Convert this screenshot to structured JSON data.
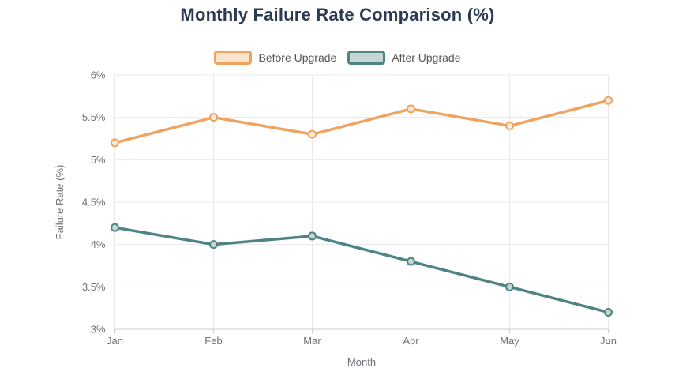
{
  "header": {
    "title": "Monthly Failure Rate Comparison (%)"
  },
  "legend": {
    "items": [
      {
        "label": "Before Upgrade",
        "border_color": "#EFA35F",
        "fill_color": "#FAE2CB"
      },
      {
        "label": "After Upgrade",
        "border_color": "#4E8484",
        "fill_color": "#C6D6D3"
      }
    ]
  },
  "chart_data": {
    "type": "line",
    "title": "Monthly Failure Rate Comparison (%)",
    "categories": [
      "Jan",
      "Feb",
      "Mar",
      "Apr",
      "May",
      "Jun"
    ],
    "series": [
      {
        "name": "Before Upgrade",
        "values": [
          5.2,
          5.5,
          5.3,
          5.6,
          5.4,
          5.7
        ],
        "color": "#EFA35F",
        "marker_fill": "#FCEBDA"
      },
      {
        "name": "After Upgrade",
        "values": [
          4.2,
          4.0,
          4.1,
          3.8,
          3.5,
          3.2
        ],
        "color": "#4E8484",
        "marker_fill": "#C4D6D3"
      }
    ],
    "xlabel": "Month",
    "ylabel": "Failure Rate (%)",
    "ylim": [
      3,
      6
    ],
    "ytick_step": 0.5,
    "ytick_labels": [
      "3%",
      "3.5%",
      "4%",
      "4.5%",
      "5%",
      "5.5%",
      "6%"
    ],
    "grid": true,
    "legend_position": "top"
  },
  "colors": {
    "title_text": "#2C3A52",
    "axis_line": "#CCCCCC",
    "grid_line": "#E9E9E9",
    "tick_text": "#6E7079",
    "axis_name_text": "#6E7079",
    "legend_text": "#565656"
  }
}
